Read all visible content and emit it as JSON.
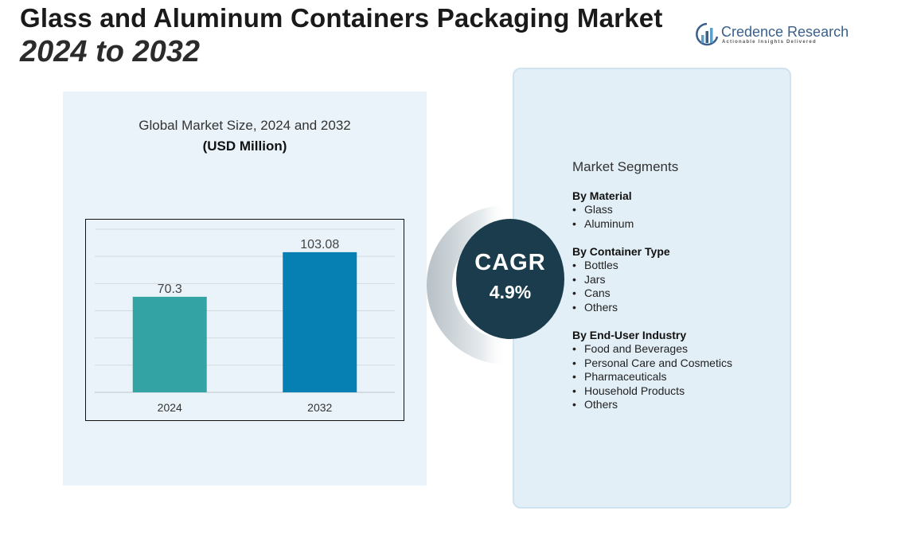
{
  "header": {
    "title_line1": "Glass and Aluminum Containers Packaging Market",
    "title_line2": "2024 to 2032"
  },
  "logo": {
    "name": "Credence Research",
    "tagline": "Actionable Insights Delivered",
    "color": "#3a5f8a"
  },
  "chart": {
    "title": "Global Market Size, 2024 and 2032",
    "unit": "(USD Million)"
  },
  "chart_data": {
    "type": "bar",
    "categories": [
      "2024",
      "2032"
    ],
    "values": [
      70.3,
      103.08
    ],
    "value_labels": [
      "70.3",
      "103.08"
    ],
    "colors": [
      "#34a3a3",
      "#0680b2"
    ],
    "title": "Global Market Size, 2024 and 2032",
    "ylabel": "(USD Million)",
    "xlabel": "",
    "ylim": [
      0,
      120
    ],
    "grid": true,
    "legend": "none"
  },
  "cagr": {
    "label": "CAGR",
    "value": "4.9%"
  },
  "segments": {
    "heading": "Market Segments",
    "groups": [
      {
        "title": "By Material",
        "items": [
          "Glass",
          "Aluminum"
        ]
      },
      {
        "title": "By Container Type",
        "items": [
          "Bottles",
          "Jars",
          "Cans",
          "Others"
        ]
      },
      {
        "title": "By End-User Industry",
        "items": [
          "Food and Beverages",
          "Personal Care and Cosmetics",
          "Pharmaceuticals",
          "Household Products",
          "Others"
        ]
      }
    ]
  }
}
